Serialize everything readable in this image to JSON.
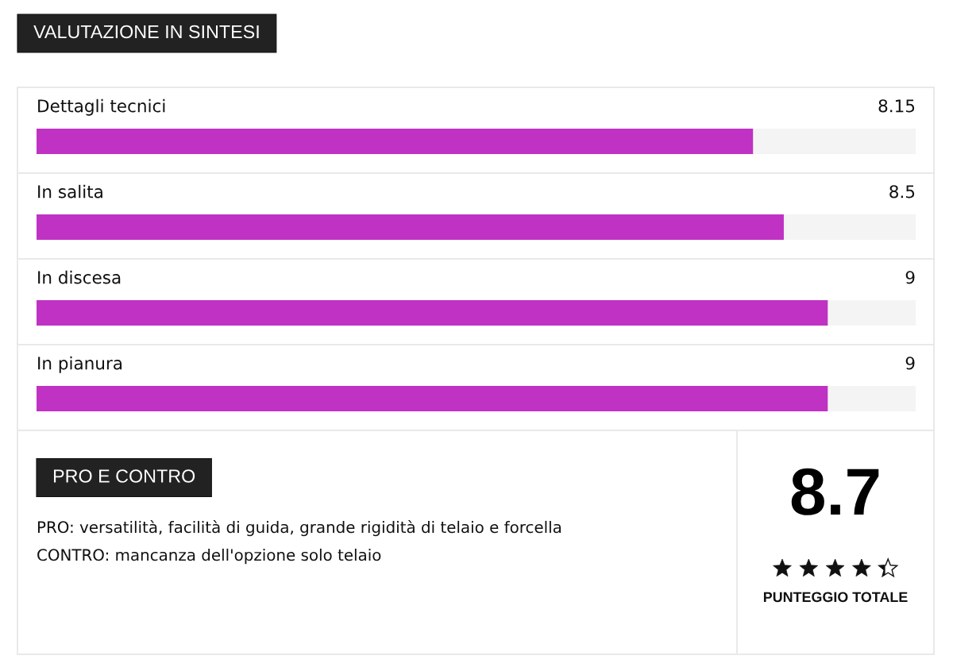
{
  "chart_data": [
    {
      "type": "bar",
      "orientation": "horizontal",
      "title": "VALUTAZIONE IN SINTESI",
      "categories": [
        "Dettagli tecnici",
        "In salita",
        "In discesa",
        "In pianura"
      ],
      "values": [
        8.15,
        8.5,
        9,
        9
      ],
      "color": "#c032c4",
      "xlim": [
        0,
        10
      ],
      "data_labels": true,
      "tick_labels": false
    },
    {
      "type": "other",
      "title": "PRO E CONTRO",
      "annotations": [
        "PRO: versatilità, facilità di guida, grande rigidità di telaio e forcella",
        "CONTRO: mancanza dell'opzione solo telaio"
      ],
      "categories": [
        "PUNTEGGIO TOTALE"
      ],
      "values": [
        8.7
      ],
      "data_labels": true
    }
  ]
}
